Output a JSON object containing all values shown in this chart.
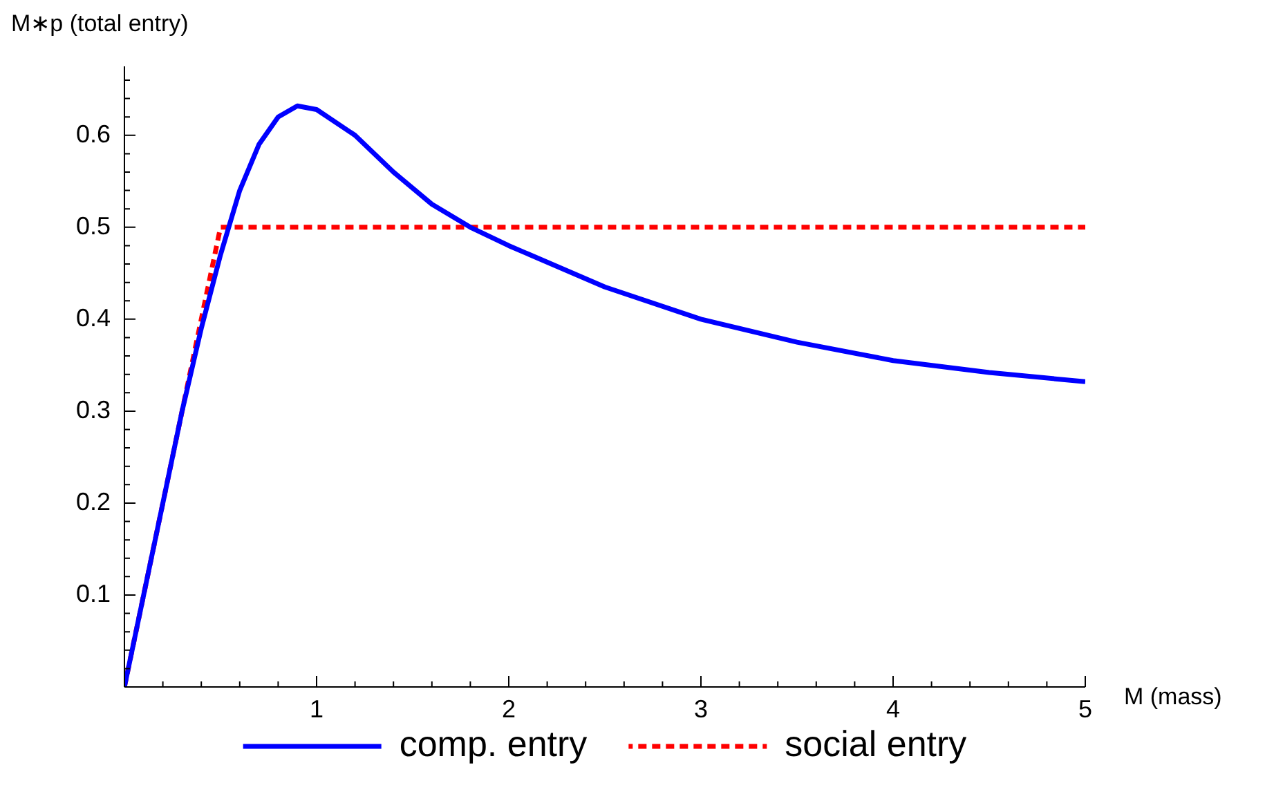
{
  "chart_data": {
    "type": "line",
    "xlabel": "M (mass)",
    "ylabel": "M∗p (total entry)",
    "xlim": [
      0,
      5
    ],
    "ylim": [
      0,
      0.675
    ],
    "xticks": [
      {
        "value": 0.2,
        "label": null
      },
      {
        "value": 0.4,
        "label": null
      },
      {
        "value": 0.6,
        "label": null
      },
      {
        "value": 0.8,
        "label": null
      },
      1,
      {
        "value": 1.2,
        "label": null
      },
      {
        "value": 1.4,
        "label": null
      },
      {
        "value": 1.6,
        "label": null
      },
      {
        "value": 1.8,
        "label": null
      },
      2,
      {
        "value": 2.2,
        "label": null
      },
      {
        "value": 2.4,
        "label": null
      },
      {
        "value": 2.6,
        "label": null
      },
      {
        "value": 2.8,
        "label": null
      },
      3,
      {
        "value": 3.2,
        "label": null
      },
      {
        "value": 3.4,
        "label": null
      },
      {
        "value": 3.6,
        "label": null
      },
      {
        "value": 3.8,
        "label": null
      },
      4,
      {
        "value": 4.2,
        "label": null
      },
      {
        "value": 4.4,
        "label": null
      },
      {
        "value": 4.6,
        "label": null
      },
      {
        "value": 4.8,
        "label": null
      },
      5
    ],
    "yticks": [
      {
        "value": 0.02,
        "label": null
      },
      {
        "value": 0.04,
        "label": null
      },
      {
        "value": 0.06,
        "label": null
      },
      {
        "value": 0.08,
        "label": null
      },
      0.1,
      {
        "value": 0.12,
        "label": null
      },
      {
        "value": 0.14,
        "label": null
      },
      {
        "value": 0.16,
        "label": null
      },
      {
        "value": 0.18,
        "label": null
      },
      0.2,
      {
        "value": 0.22,
        "label": null
      },
      {
        "value": 0.24,
        "label": null
      },
      {
        "value": 0.26,
        "label": null
      },
      {
        "value": 0.28,
        "label": null
      },
      0.3,
      {
        "value": 0.32,
        "label": null
      },
      {
        "value": 0.34,
        "label": null
      },
      {
        "value": 0.36,
        "label": null
      },
      {
        "value": 0.38,
        "label": null
      },
      0.4,
      {
        "value": 0.42,
        "label": null
      },
      {
        "value": 0.44,
        "label": null
      },
      {
        "value": 0.46,
        "label": null
      },
      {
        "value": 0.48,
        "label": null
      },
      0.5,
      {
        "value": 0.52,
        "label": null
      },
      {
        "value": 0.54,
        "label": null
      },
      {
        "value": 0.56,
        "label": null
      },
      {
        "value": 0.58,
        "label": null
      },
      0.6,
      {
        "value": 0.62,
        "label": null
      },
      {
        "value": 0.64,
        "label": null
      },
      {
        "value": 0.66,
        "label": null
      }
    ],
    "grid": false,
    "legend": "bottom",
    "marker": "none",
    "series": [
      {
        "name": "comp. entry",
        "color": "#0000ff",
        "line_style": "solid",
        "x": [
          0,
          0.1,
          0.2,
          0.3,
          0.4,
          0.5,
          0.6,
          0.7,
          0.8,
          0.9,
          1.0,
          1.2,
          1.4,
          1.6,
          1.8,
          2.0,
          2.5,
          3,
          3.5,
          4,
          4.5,
          5
        ],
        "values": [
          0,
          0.1,
          0.2,
          0.3,
          0.39,
          0.47,
          0.54,
          0.59,
          0.62,
          0.632,
          0.628,
          0.6,
          0.56,
          0.525,
          0.5,
          0.48,
          0.435,
          0.4,
          0.375,
          0.355,
          0.342,
          0.332
        ]
      },
      {
        "name": "social entry",
        "color": "#ff0000",
        "line_style": "dotted",
        "x": [
          0,
          0.5,
          5
        ],
        "values": [
          0,
          0.5,
          0.5
        ]
      }
    ]
  }
}
